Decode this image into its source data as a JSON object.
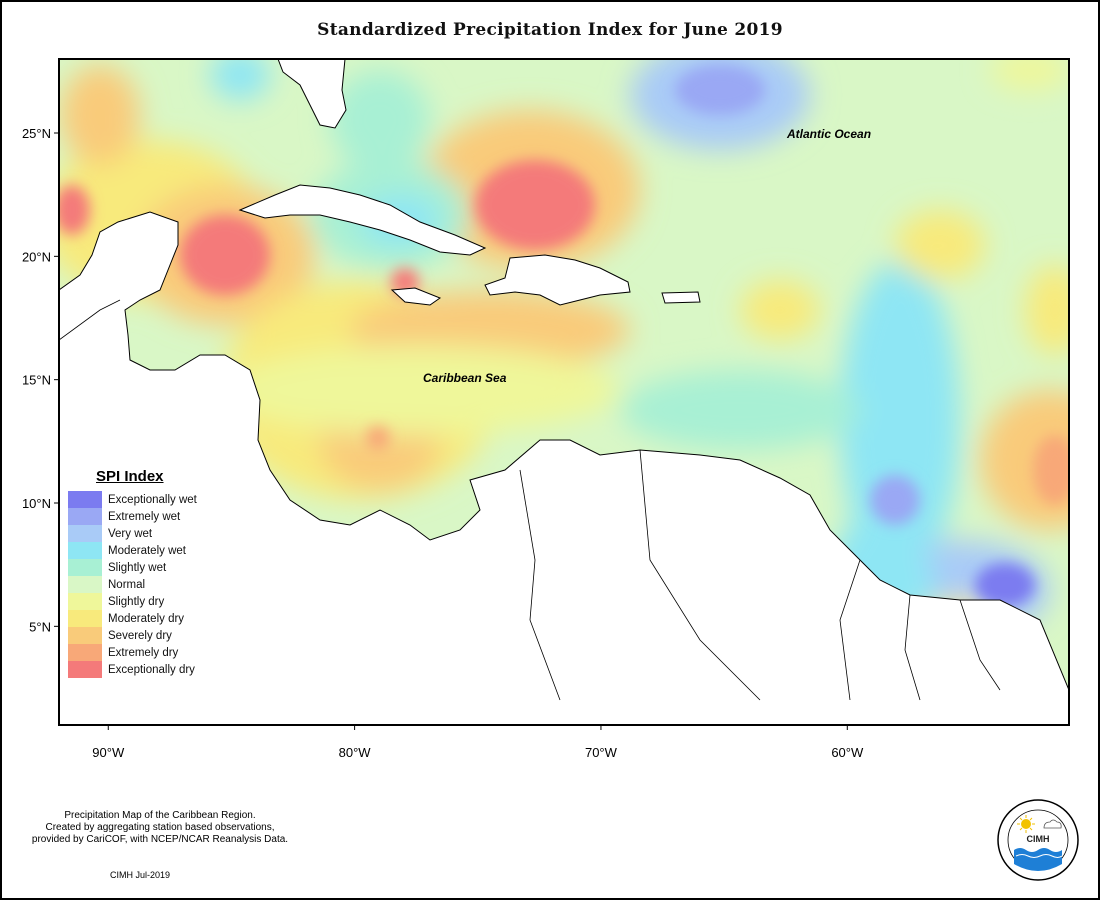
{
  "title": "Standardized Precipitation Index for June 2019",
  "map": {
    "lon_range": [
      -92,
      -51
    ],
    "lat_range": [
      1,
      28
    ],
    "lon_ticks": [
      {
        "value": -90,
        "label": "90°W"
      },
      {
        "value": -80,
        "label": "80°W"
      },
      {
        "value": -70,
        "label": "70°W"
      },
      {
        "value": -60,
        "label": "60°W"
      }
    ],
    "lat_ticks": [
      {
        "value": 25,
        "label": "25°N"
      },
      {
        "value": 20,
        "label": "20°N"
      },
      {
        "value": 15,
        "label": "15°N"
      },
      {
        "value": 10,
        "label": "10°N"
      },
      {
        "value": 5,
        "label": "5°N"
      }
    ],
    "ocean_labels": {
      "atlantic": "Atlantic Ocean",
      "caribbean": "Caribbean Sea"
    }
  },
  "legend": {
    "title": "SPI Index",
    "items": [
      {
        "label": "Exceptionally wet",
        "color": "#7b7bf0"
      },
      {
        "label": "Extremely wet",
        "color": "#9aa8f4"
      },
      {
        "label": "Very wet",
        "color": "#a9cbf7"
      },
      {
        "label": "Moderately wet",
        "color": "#8ee6f4"
      },
      {
        "label": "Slightly wet",
        "color": "#a8f0d4"
      },
      {
        "label": "Normal",
        "color": "#d9f7c6"
      },
      {
        "label": "Slightly dry",
        "color": "#eff79a"
      },
      {
        "label": "Moderately dry",
        "color": "#f8ea7c"
      },
      {
        "label": "Severely dry",
        "color": "#f9cb7a"
      },
      {
        "label": "Extremely dry",
        "color": "#f8a878"
      },
      {
        "label": "Exceptionally dry",
        "color": "#f47a7a"
      }
    ]
  },
  "footnote": {
    "line1": "Precipitation Map of the Caribbean Region.",
    "line2": "Created by aggregating station based observations,",
    "line3": "provided by CariCOF, with NCEP/NCAR Reanalysis Data."
  },
  "credit": "CIMH Jul-2019",
  "logo": {
    "text": "CIMH"
  }
}
